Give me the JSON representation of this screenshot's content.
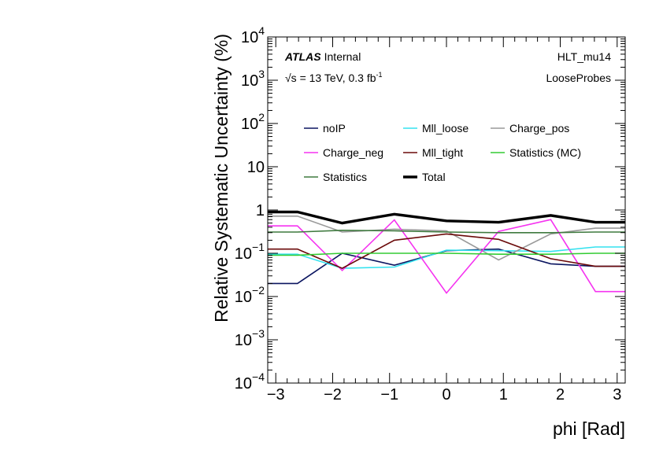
{
  "chart_data": {
    "type": "line",
    "y_scale": "log",
    "x": [
      -3.1416,
      -2.618,
      -1.8326,
      -0.9163,
      0.0,
      0.9163,
      1.8326,
      2.618,
      3.1416
    ],
    "xlim": [
      -3.1416,
      3.1416
    ],
    "ylim": [
      0.0001,
      10000
    ],
    "x_ticks": [
      -3,
      -2,
      -1,
      0,
      1,
      2,
      3
    ],
    "x_tick_labels": [
      "−3",
      "−2",
      "−1",
      "0",
      "1",
      "2",
      "3"
    ],
    "y_ticks": [
      0.0001,
      0.001,
      0.01,
      0.1,
      1,
      10,
      100,
      1000,
      10000
    ],
    "y_tick_labels": [
      {
        "base": "10",
        "exp": "−4"
      },
      {
        "base": "10",
        "exp": "−3"
      },
      {
        "base": "10",
        "exp": "−2"
      },
      {
        "base": "10",
        "exp": "−1"
      },
      {
        "base": "1",
        "exp": ""
      },
      {
        "base": "10",
        "exp": ""
      },
      {
        "base": "10",
        "exp": "2"
      },
      {
        "base": "10",
        "exp": "3"
      },
      {
        "base": "10",
        "exp": "4"
      }
    ],
    "xlabel": "phi [Rad]",
    "ylabel": "Relative Systematic Uncertainty (%)",
    "legend_position": "top",
    "grid": false,
    "series": [
      {
        "name": "noIP",
        "color": "#0b1560",
        "width": 1.6,
        "values": [
          0.02,
          0.02,
          0.1,
          0.053,
          0.115,
          0.125,
          0.057,
          0.05,
          0.05
        ]
      },
      {
        "name": "Mll_loose",
        "color": "#33e2ef",
        "width": 1.6,
        "values": [
          0.095,
          0.095,
          0.045,
          0.048,
          0.118,
          0.115,
          0.11,
          0.14,
          0.14
        ]
      },
      {
        "name": "Charge_pos",
        "color": "#999999",
        "width": 1.6,
        "values": [
          0.72,
          0.72,
          0.31,
          0.36,
          0.33,
          0.07,
          0.28,
          0.38,
          0.38
        ]
      },
      {
        "name": "Charge_neg",
        "color": "#f533f0",
        "width": 1.6,
        "values": [
          0.43,
          0.43,
          0.04,
          0.59,
          0.012,
          0.32,
          0.6,
          0.013,
          0.013
        ]
      },
      {
        "name": "Mll_tight",
        "color": "#6b0a0a",
        "width": 1.6,
        "values": [
          0.125,
          0.125,
          0.045,
          0.2,
          0.28,
          0.21,
          0.075,
          0.05,
          0.05
        ]
      },
      {
        "name": "Statistics (MC)",
        "color": "#33cc33",
        "width": 1.6,
        "values": [
          0.09,
          0.09,
          0.1,
          0.1,
          0.1,
          0.095,
          0.095,
          0.1,
          0.1
        ]
      },
      {
        "name": "Statistics",
        "color": "#3f7a3f",
        "width": 1.6,
        "values": [
          0.31,
          0.31,
          0.34,
          0.33,
          0.31,
          0.3,
          0.3,
          0.31,
          0.31
        ]
      },
      {
        "name": "Total",
        "color": "#000000",
        "width": 3.4,
        "values": [
          0.9,
          0.9,
          0.5,
          0.8,
          0.56,
          0.52,
          0.75,
          0.52,
          0.52
        ]
      }
    ]
  },
  "annotations": {
    "atlas": "ATLAS",
    "internal": "Internal",
    "energy_sqrt": "√s",
    "energy_rest": " = 13 TeV, 0.3 fb",
    "energy_exp": "-1",
    "trigger": "HLT_mu14",
    "probes": "LooseProbes"
  }
}
